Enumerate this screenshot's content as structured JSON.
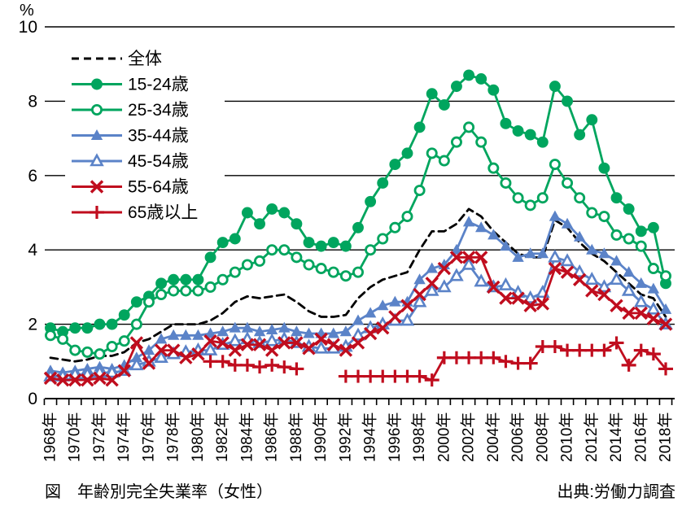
{
  "figure": {
    "title": "図　年齢別完全失業率（女性）",
    "source": "出典:労働力調査",
    "unit_label": "%"
  },
  "chart_data": {
    "type": "line",
    "title": "年齢別完全失業率（女性）",
    "xlabel": "",
    "ylabel": "%",
    "ylim": [
      0,
      10
    ],
    "y_ticks": [
      0,
      2,
      4,
      6,
      8,
      10
    ],
    "grid": "horizontal",
    "legend_position": "top-left-inside",
    "x": [
      1968,
      1969,
      1970,
      1971,
      1972,
      1973,
      1974,
      1975,
      1976,
      1977,
      1978,
      1979,
      1980,
      1981,
      1982,
      1983,
      1984,
      1985,
      1986,
      1987,
      1988,
      1989,
      1990,
      1991,
      1992,
      1993,
      1994,
      1995,
      1996,
      1997,
      1998,
      1999,
      2000,
      2001,
      2002,
      2003,
      2004,
      2005,
      2006,
      2007,
      2008,
      2009,
      2010,
      2011,
      2012,
      2013,
      2014,
      2015,
      2016,
      2017,
      2018
    ],
    "x_tick_labels": [
      "1968年",
      "1970年",
      "1972年",
      "1974年",
      "1976年",
      "1978年",
      "1980年",
      "1982年",
      "1984年",
      "1986年",
      "1988年",
      "1990年",
      "1992年",
      "1994年",
      "1996年",
      "1998年",
      "2000年",
      "2002年",
      "2004年",
      "2006年",
      "2008年",
      "2010年",
      "2012年",
      "2014年",
      "2016年",
      "2018年"
    ],
    "series": [
      {
        "name": "全体",
        "key": "overall",
        "color": "#000000",
        "style": "dashed",
        "marker": "none",
        "values": [
          1.1,
          1.05,
          1.0,
          1.05,
          1.15,
          1.15,
          1.25,
          1.5,
          1.6,
          1.8,
          2.0,
          2.0,
          2.0,
          2.1,
          2.3,
          2.6,
          2.75,
          2.7,
          2.75,
          2.8,
          2.6,
          2.35,
          2.2,
          2.2,
          2.25,
          2.7,
          3.0,
          3.2,
          3.3,
          3.4,
          4.0,
          4.5,
          4.5,
          4.7,
          5.1,
          4.9,
          4.5,
          4.2,
          3.9,
          3.8,
          3.8,
          4.8,
          4.6,
          4.2,
          3.9,
          3.7,
          3.4,
          3.1,
          2.8,
          2.7,
          2.2
        ]
      },
      {
        "name": "15-24歳",
        "key": "age-15-24",
        "color": "#00A55E",
        "style": "solid",
        "marker": "circle",
        "values": [
          1.9,
          1.8,
          1.9,
          1.9,
          2.0,
          2.0,
          2.25,
          2.6,
          2.75,
          3.1,
          3.2,
          3.2,
          3.2,
          3.8,
          4.2,
          4.3,
          5.0,
          4.7,
          5.1,
          5.0,
          4.7,
          4.2,
          4.1,
          4.2,
          4.1,
          4.6,
          5.3,
          5.8,
          6.3,
          6.6,
          7.3,
          8.2,
          7.9,
          8.4,
          8.7,
          8.6,
          8.3,
          7.4,
          7.2,
          7.1,
          6.9,
          8.4,
          8.0,
          7.1,
          7.5,
          6.2,
          5.4,
          5.1,
          4.5,
          4.6,
          3.1
        ]
      },
      {
        "name": "25-34歳",
        "key": "age-25-34",
        "color": "#00A55E",
        "style": "solid",
        "marker": "circle-open",
        "values": [
          1.7,
          1.6,
          1.3,
          1.25,
          1.2,
          1.4,
          1.55,
          2.0,
          2.6,
          2.8,
          2.9,
          2.9,
          2.9,
          3.0,
          3.2,
          3.4,
          3.6,
          3.7,
          4.0,
          4.0,
          3.8,
          3.6,
          3.5,
          3.4,
          3.3,
          3.4,
          4.0,
          4.3,
          4.6,
          4.9,
          5.6,
          6.6,
          6.4,
          6.9,
          7.3,
          6.9,
          6.2,
          5.8,
          5.4,
          5.2,
          5.4,
          6.3,
          5.8,
          5.4,
          5.0,
          4.9,
          4.4,
          4.3,
          4.1,
          3.5,
          3.3
        ]
      },
      {
        "name": "35-44歳",
        "key": "age-35-44",
        "color": "#5B83C8",
        "style": "solid",
        "marker": "triangle",
        "values": [
          0.75,
          0.7,
          0.75,
          0.8,
          0.85,
          0.8,
          0.9,
          1.1,
          1.3,
          1.6,
          1.7,
          1.7,
          1.7,
          1.75,
          1.8,
          1.9,
          1.9,
          1.8,
          1.85,
          1.9,
          1.8,
          1.75,
          1.75,
          1.75,
          1.8,
          2.1,
          2.3,
          2.5,
          2.6,
          2.6,
          3.2,
          3.5,
          3.6,
          4.0,
          4.75,
          4.6,
          4.4,
          4.1,
          3.8,
          3.9,
          3.9,
          4.9,
          4.7,
          4.35,
          4.0,
          3.9,
          3.7,
          3.4,
          3.1,
          2.95,
          2.4
        ]
      },
      {
        "name": "45-54歳",
        "key": "age-45-54",
        "color": "#5B83C8",
        "style": "solid",
        "marker": "triangle-open",
        "values": [
          0.6,
          0.6,
          0.65,
          0.65,
          0.7,
          0.7,
          0.75,
          0.9,
          1.0,
          1.1,
          1.2,
          1.25,
          1.3,
          1.3,
          1.45,
          1.55,
          1.6,
          1.5,
          1.55,
          1.6,
          1.5,
          1.4,
          1.35,
          1.35,
          1.4,
          1.7,
          1.9,
          2.0,
          2.1,
          2.1,
          2.6,
          2.9,
          3.0,
          3.3,
          3.6,
          3.15,
          3.0,
          3.05,
          2.85,
          2.7,
          2.85,
          3.8,
          3.7,
          3.4,
          3.2,
          3.0,
          3.2,
          2.9,
          2.6,
          2.4,
          2.0
        ]
      },
      {
        "name": "55-64歳",
        "key": "age-55-64",
        "color": "#C00D1E",
        "style": "solid",
        "marker": "x",
        "values": [
          0.55,
          0.5,
          0.5,
          0.5,
          0.55,
          0.5,
          0.75,
          1.5,
          0.95,
          1.3,
          1.3,
          1.1,
          1.2,
          1.55,
          1.5,
          1.3,
          1.45,
          1.45,
          1.3,
          1.5,
          1.5,
          1.35,
          1.6,
          1.45,
          1.3,
          1.5,
          1.75,
          1.9,
          2.2,
          2.5,
          2.8,
          3.1,
          3.5,
          3.8,
          3.8,
          3.8,
          3.0,
          2.7,
          2.7,
          2.5,
          2.55,
          3.5,
          3.4,
          3.2,
          2.9,
          2.8,
          2.5,
          2.3,
          2.3,
          2.15,
          2.0
        ]
      },
      {
        "name": "65歳以上",
        "key": "age-65-plus",
        "color": "#C00D1E",
        "style": "solid",
        "marker": "plus",
        "values": [
          null,
          null,
          null,
          null,
          null,
          null,
          null,
          null,
          null,
          null,
          null,
          null,
          null,
          1.0,
          1.0,
          0.9,
          0.9,
          0.85,
          0.9,
          0.85,
          0.8,
          null,
          null,
          null,
          0.6,
          0.6,
          0.6,
          0.6,
          0.6,
          0.6,
          0.6,
          0.5,
          1.1,
          1.1,
          1.1,
          1.1,
          1.1,
          1.0,
          0.95,
          0.95,
          1.4,
          1.4,
          1.3,
          1.3,
          1.3,
          1.3,
          1.5,
          0.9,
          1.3,
          1.2,
          0.8
        ]
      }
    ]
  }
}
